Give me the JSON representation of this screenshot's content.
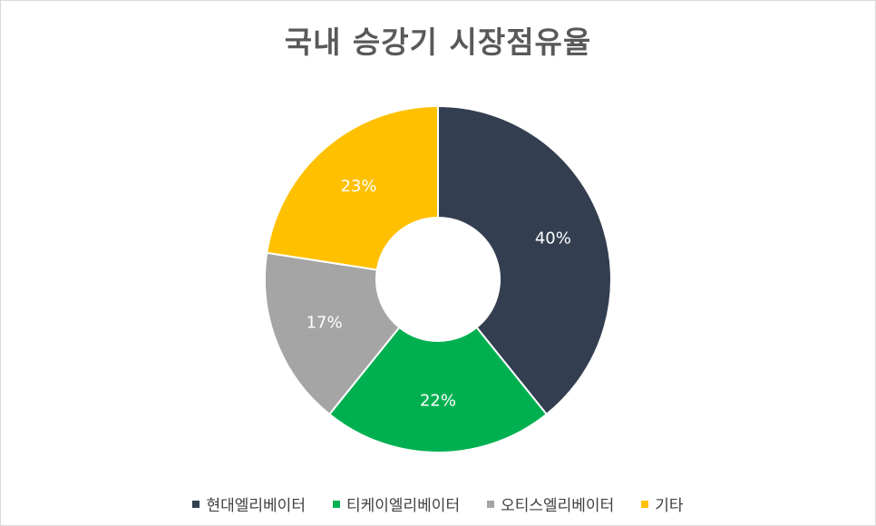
{
  "chart_data": {
    "type": "donut",
    "title": "국내 승강기 시장점유율",
    "categories": [
      "현대엘리베이터",
      "티케이엘리베이터",
      "오티스엘리베이터",
      "기타"
    ],
    "values": [
      40,
      22,
      17,
      23
    ],
    "value_labels": [
      "40%",
      "22%",
      "17%",
      "23%"
    ],
    "colors": [
      "#333f50",
      "#00b050",
      "#a5a5a5",
      "#ffc000"
    ],
    "legend_position": "bottom"
  }
}
